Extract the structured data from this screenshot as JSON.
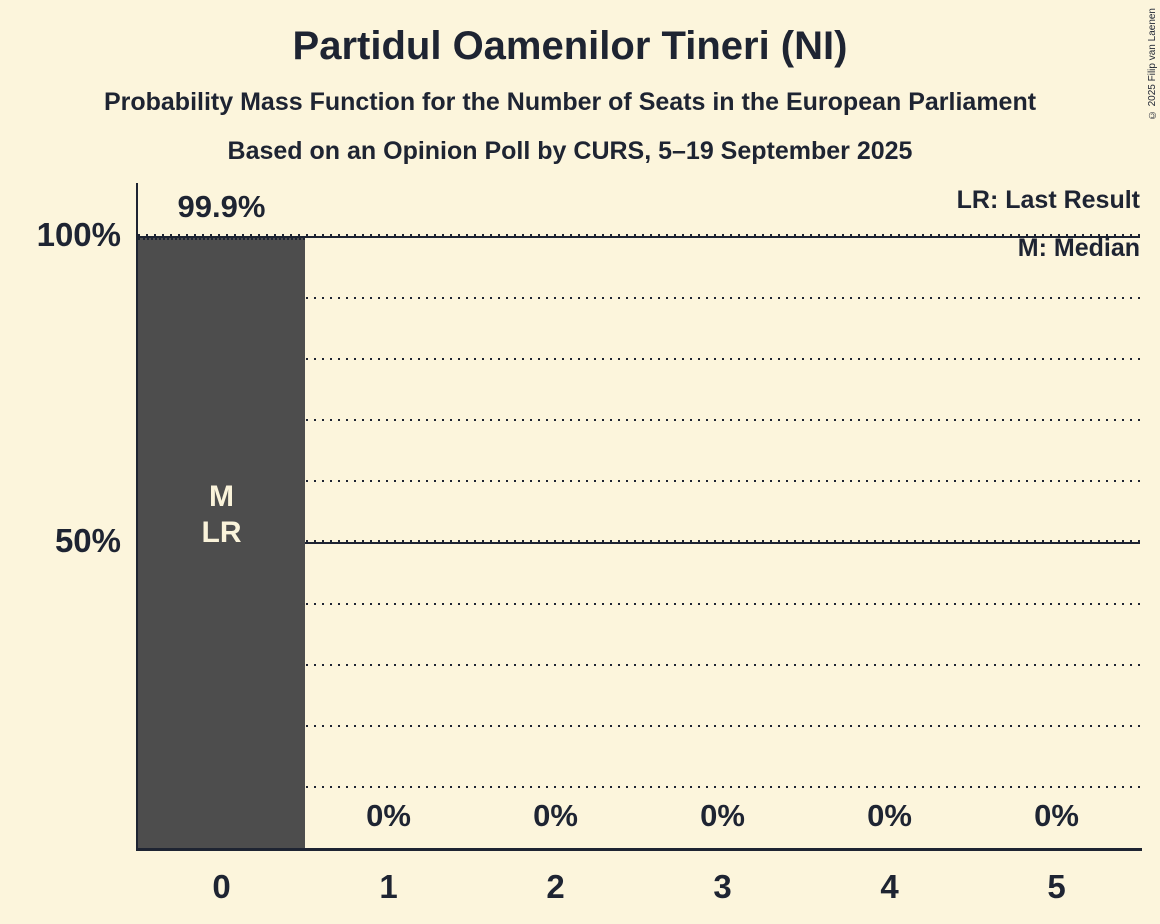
{
  "title": "Partidul Oamenilor Tineri (NI)",
  "subtitle1": "Probability Mass Function for the Number of Seats in the European Parliament",
  "subtitle2": "Based on an Opinion Poll by CURS, 5–19 September 2025",
  "copyright": "© 2025 Filip van Laenen",
  "legend": {
    "lr": "LR: Last Result",
    "m": "M: Median"
  },
  "colors": {
    "background": "#fcf5dc",
    "bar": "#4d4d4d",
    "text": "#1e2432",
    "bar_label": "#faf3da"
  },
  "chart_data": {
    "type": "bar",
    "title": "Partidul Oamenilor Tineri (NI)",
    "categories": [
      "0",
      "1",
      "2",
      "3",
      "4",
      "5"
    ],
    "values": [
      99.9,
      0,
      0,
      0,
      0,
      0
    ],
    "value_labels": [
      "99.9%",
      "0%",
      "0%",
      "0%",
      "0%",
      "0%"
    ],
    "ylim": [
      0,
      100
    ],
    "ytick_interval": 10,
    "grid": "dotted horizontal",
    "solid_gridlines": [
      50,
      100
    ],
    "y_axis_labels": [
      {
        "value": 100,
        "text": "100%"
      },
      {
        "value": 50,
        "text": "50%"
      }
    ],
    "annotations": [
      {
        "category_index": 0,
        "lines": [
          "M",
          "LR"
        ]
      }
    ],
    "legend_position": "top-right"
  }
}
